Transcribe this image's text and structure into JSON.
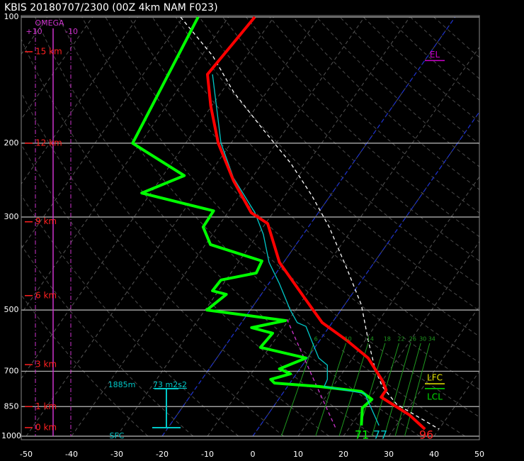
{
  "chart_data": {
    "type": "skewt",
    "title": "KBIS  20180707/2300  (00Z  4km NAM  F023)",
    "log_y": true,
    "ylim": [
      1000,
      100
    ],
    "yticks": [
      100,
      200,
      300,
      500,
      700,
      850,
      1000
    ],
    "xlim": [
      -50,
      50
    ],
    "xticks": [
      -50,
      -40,
      -30,
      -20,
      -10,
      0,
      10,
      20,
      30,
      40,
      50
    ],
    "grid": true,
    "highlight_isotherms": [
      -20,
      0
    ],
    "highlight_color": "#1a2fd0",
    "series": [
      {
        "color": "#cc33cc",
        "style": "dashed",
        "y": [
          526,
          717,
          962
        ],
        "x": [
          -10.5,
          3.7,
          17.3
        ]
      },
      {
        "color": "#ffffff",
        "style": "dashed",
        "y": [
          100,
          124,
          151,
          184,
          223,
          266,
          317,
          400,
          486,
          591,
          691,
          761,
          839,
          962
        ],
        "x": [
          -80.6,
          -67.4,
          -57.3,
          -45.5,
          -33.8,
          -24.2,
          -15.4,
          -4.9,
          3.7,
          10.7,
          16.6,
          20.9,
          26.8,
          40.0
        ]
      },
      {
        "color": "#00ff00",
        "style": "thick",
        "y": [
          100,
          200,
          239,
          263,
          290,
          317,
          349,
          382,
          408,
          424,
          450,
          459,
          500,
          530,
          551,
          568,
          614,
          651,
          691,
          710,
          732,
          747,
          761,
          782,
          817,
          856,
          943
        ],
        "x": [
          -76.7,
          -71.7,
          -55.3,
          -62.0,
          -43.4,
          -43.2,
          -38.9,
          -25.0,
          -24.4,
          -31.1,
          -31.3,
          -27.7,
          -29.6,
          -10.6,
          -17.0,
          -11.5,
          -12.0,
          -0.3,
          -4.5,
          -1.3,
          -4.8,
          -3.4,
          6.9,
          17.0,
          20.6,
          19.8,
          22.3
        ]
      },
      {
        "color": "#00c8c8",
        "style": "thin",
        "y": [
          137,
          200,
          242,
          293,
          330,
          385,
          433,
          500,
          536,
          547,
          591,
          651,
          677,
          732,
          761,
          791,
          943
        ],
        "x": [
          -64.7,
          -52.2,
          -44.1,
          -34.0,
          -28.8,
          -23.2,
          -17.6,
          -11.2,
          -7.7,
          -5.2,
          -1.8,
          2.5,
          5.5,
          7.7,
          8.1,
          18.1,
          26.2
        ]
      },
      {
        "color": "#ff0000",
        "style": "thick",
        "y": [
          100,
          115,
          137,
          163,
          200,
          246,
          293,
          311,
          385,
          468,
          536,
          591,
          651,
          738,
          776,
          807,
          890,
          962
        ],
        "x": [
          -64.2,
          -64.9,
          -65.8,
          -60.2,
          -52.8,
          -43.6,
          -34.8,
          -29.5,
          -20.9,
          -9.9,
          -2.2,
          6.0,
          13.4,
          20.1,
          22.3,
          22.3,
          31.3,
          36.9
        ]
      }
    ],
    "mixing_ratios": [
      6,
      10,
      14,
      18,
      22,
      26,
      30,
      34
    ],
    "mixing_ratio_color": "#1f9a1f",
    "height_labels": [
      {
        "label": "15 km",
        "pressure": 121
      },
      {
        "label": "12 km",
        "pressure": 200
      },
      {
        "label": "9 km",
        "pressure": 308
      },
      {
        "label": "6 km",
        "pressure": 462
      },
      {
        "label": "3 km",
        "pressure": 675
      },
      {
        "label": "1 km",
        "pressure": 850
      },
      {
        "label": "0 km",
        "pressure": 954
      }
    ],
    "levels": [
      {
        "label": "EL",
        "pressure": 127,
        "color": "#cc00cc"
      },
      {
        "label": "LFC",
        "pressure": 750,
        "color": "#e8e800"
      },
      {
        "label": "LCL",
        "pressure": 770,
        "color": "#00e000"
      }
    ],
    "omega": {
      "title": "OMEGA",
      "left": "+10",
      "right": "-10"
    },
    "helicity": {
      "depth": "1885m",
      "value": "73 m2s2"
    },
    "surface": {
      "label": "SFC",
      "dewpoint": 71,
      "virtual": 77,
      "temperature": 96
    }
  }
}
